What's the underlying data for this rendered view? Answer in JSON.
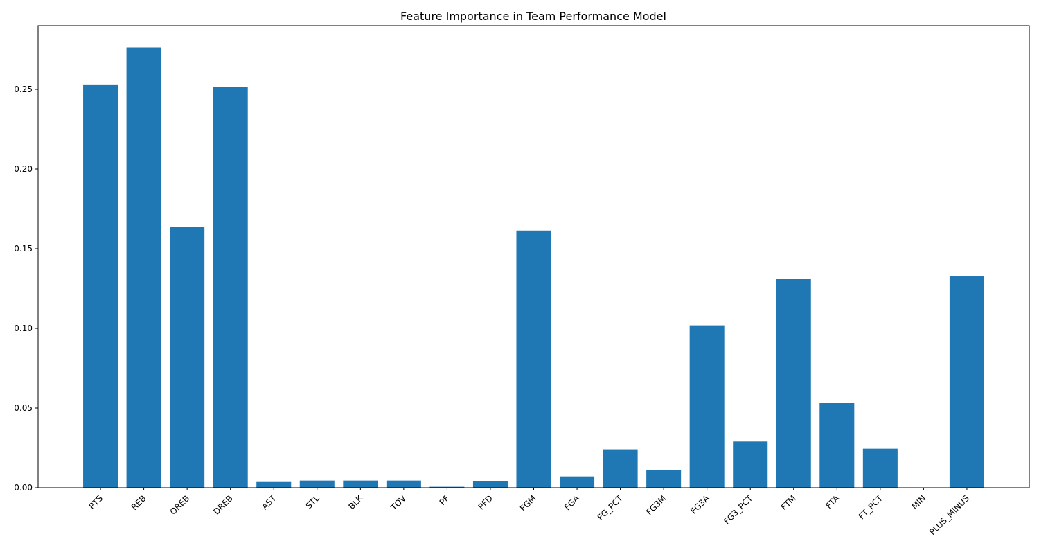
{
  "chart_data": {
    "type": "bar",
    "title": "Feature Importance in Team Performance Model",
    "xlabel": "",
    "ylabel": "",
    "categories": [
      "PTS",
      "REB",
      "OREB",
      "DREB",
      "AST",
      "STL",
      "BLK",
      "TOV",
      "PF",
      "PFD",
      "FGM",
      "FGA",
      "FG_PCT",
      "FG3M",
      "FG3A",
      "FG3_PCT",
      "FTM",
      "FTA",
      "FT_PCT",
      "MIN",
      "PLUS_MINUS"
    ],
    "values": [
      0.2531,
      0.2763,
      0.1637,
      0.2514,
      0.0036,
      0.0045,
      0.0045,
      0.0045,
      0.0006,
      0.004,
      0.1614,
      0.0071,
      0.0241,
      0.0113,
      0.1019,
      0.029,
      0.1309,
      0.0532,
      0.0245,
      0.0,
      0.1326
    ],
    "ylim": [
      0,
      0.29
    ],
    "yticks": [
      0.0,
      0.05,
      0.1,
      0.15,
      0.2,
      0.25
    ],
    "ytick_labels": [
      "0.00",
      "0.05",
      "0.10",
      "0.15",
      "0.20",
      "0.25"
    ],
    "bar_color": "#1f77b4",
    "grid": false,
    "legend": "none"
  }
}
